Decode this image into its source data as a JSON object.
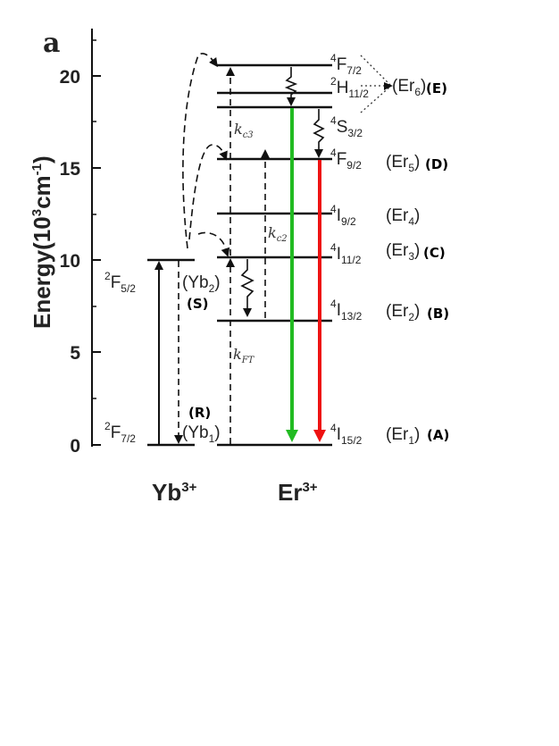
{
  "panel_label": "a",
  "axis": {
    "title": "Energy(10",
    "title_sup": "3",
    "title_mid": "cm",
    "title_sup2": "-1",
    "title_end": ")",
    "ticks": [
      "0",
      "5",
      "10",
      "15",
      "20"
    ]
  },
  "ions": {
    "yb": {
      "name": "Yb",
      "charge": "3+"
    },
    "er": {
      "name": "Er",
      "charge": "3+"
    }
  },
  "yb_levels": [
    {
      "sup": "2",
      "main": "F",
      "sub": "7/2",
      "state": "(Yb",
      "state_sub": "1",
      "state_end": ")",
      "tag": "(R)"
    },
    {
      "sup": "2",
      "main": "F",
      "sub": "5/2",
      "state": "(Yb",
      "state_sub": "2",
      "state_end": ")",
      "tag": "(S)"
    }
  ],
  "er_levels": [
    {
      "sup": "4",
      "main": "I",
      "sub": "15/2",
      "state": "(Er",
      "state_sub": "1",
      "state_end": ")",
      "tag": "(A)"
    },
    {
      "sup": "4",
      "main": "I",
      "sub": "13/2",
      "state": "(Er",
      "state_sub": "2",
      "state_end": ")",
      "tag": "(B)"
    },
    {
      "sup": "4",
      "main": "I",
      "sub": "11/2",
      "state": "(Er",
      "state_sub": "3",
      "state_end": ")",
      "tag": "(C)"
    },
    {
      "sup": "4",
      "main": "I",
      "sub": "9/2",
      "state": "(Er",
      "state_sub": "4",
      "state_end": ")",
      "tag": ""
    },
    {
      "sup": "4",
      "main": "F",
      "sub": "9/2",
      "state": "(Er",
      "state_sub": "5",
      "state_end": ")",
      "tag": "(D)"
    },
    {
      "sup": "4",
      "main": "S",
      "sub": "3/2",
      "state": "",
      "state_sub": "",
      "state_end": "",
      "tag": ""
    },
    {
      "sup": "2",
      "main": "H",
      "sub": "11/2",
      "state": "",
      "state_sub": "",
      "state_end": "",
      "tag": ""
    },
    {
      "sup": "4",
      "main": "F",
      "sub": "7/2",
      "state": "",
      "state_sub": "",
      "state_end": "",
      "tag": ""
    }
  ],
  "er6": {
    "state": "(Er",
    "state_sub": "6",
    "state_end": ")",
    "tag": "(E)"
  },
  "rates": {
    "kc3": {
      "k": "k",
      "sub": "c3"
    },
    "kc2": {
      "k": "k",
      "sub": "c2"
    },
    "kft": {
      "k": "k",
      "sub": "FT"
    }
  },
  "colors": {
    "green_emission": "#22bb22",
    "red_emission": "#ee1111",
    "line": "#111111"
  }
}
